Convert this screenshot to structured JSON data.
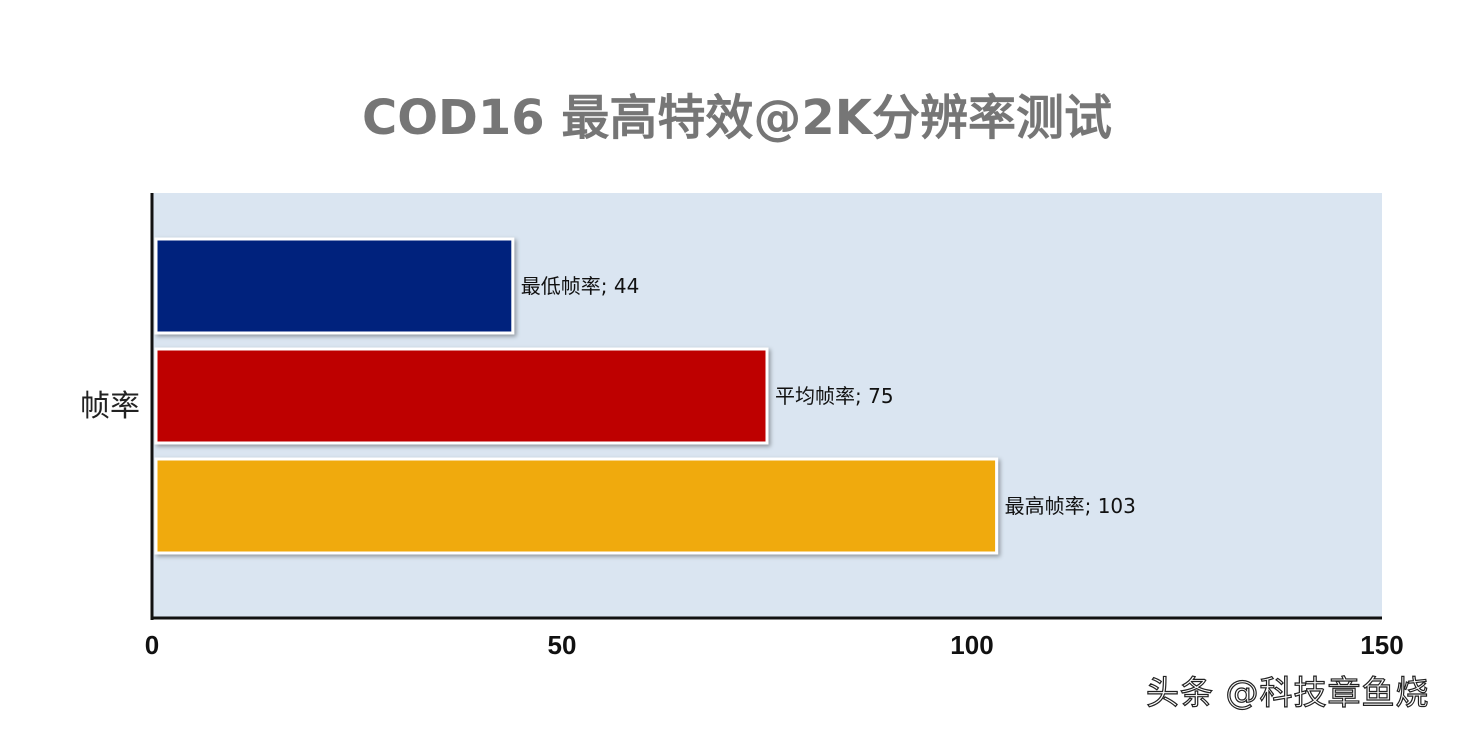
{
  "chart_data": {
    "type": "bar",
    "orientation": "horizontal",
    "title": "COD16 最高特效@2K分辨率测试",
    "categories": [
      "帧率"
    ],
    "series": [
      {
        "name": "最低帧率",
        "values": [
          44
        ],
        "color": "#00247D"
      },
      {
        "name": "平均帧率",
        "values": [
          75
        ],
        "color": "#BE0000"
      },
      {
        "name": "最高帧率",
        "values": [
          103
        ],
        "color": "#F0AA10"
      }
    ],
    "data_labels": [
      "最低帧率; 44",
      "平均帧率; 75",
      "最高帧率; 103"
    ],
    "xlim": [
      0,
      150
    ],
    "x_ticks": [
      0,
      50,
      100,
      150
    ],
    "x_tick_labels": [
      "0",
      "50",
      "100",
      "150"
    ],
    "plot_background": "#DAE5F1",
    "grid": false,
    "legend": "none"
  },
  "watermark": "头条 @科技章鱼烧"
}
